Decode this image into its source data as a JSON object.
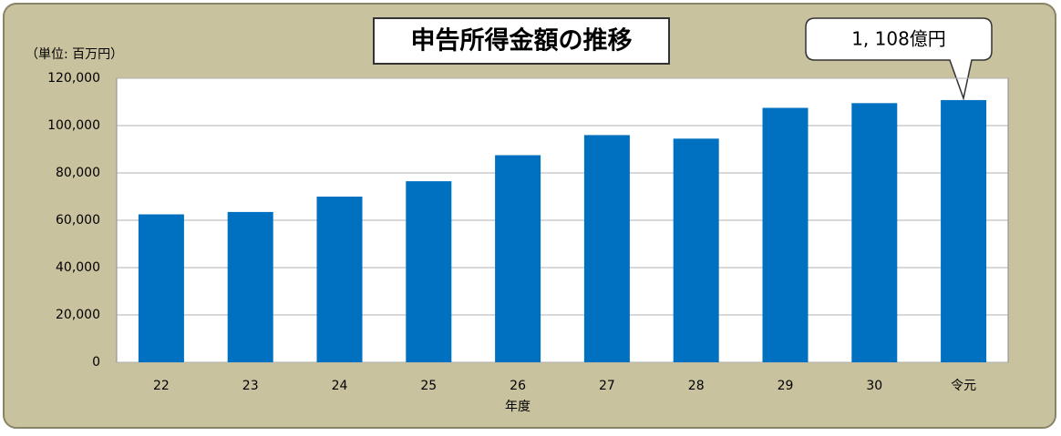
{
  "chart_data": {
    "type": "bar",
    "title": "申告所得金額の推移",
    "unit_label": "（単位: 百万円）",
    "x_label": "年度",
    "annotation": "1, 108億円",
    "categories": [
      "22",
      "23",
      "24",
      "25",
      "26",
      "27",
      "28",
      "29",
      "30",
      "令元"
    ],
    "values": [
      62500,
      63500,
      70000,
      76500,
      87500,
      96000,
      94500,
      107500,
      109500,
      110800
    ],
    "color": "#0070c0",
    "ylim": [
      0,
      120000
    ],
    "yticks": [
      0,
      {
        "value": 20000,
        "label": "20,000"
      },
      {
        "value": 40000,
        "label": "40,000"
      },
      {
        "value": 60000,
        "label": "60,000"
      },
      {
        "value": 80000,
        "label": "80,000"
      },
      {
        "value": 100000,
        "label": "100,000"
      },
      {
        "value": 120000,
        "label": "120,000"
      }
    ],
    "grid": true
  }
}
